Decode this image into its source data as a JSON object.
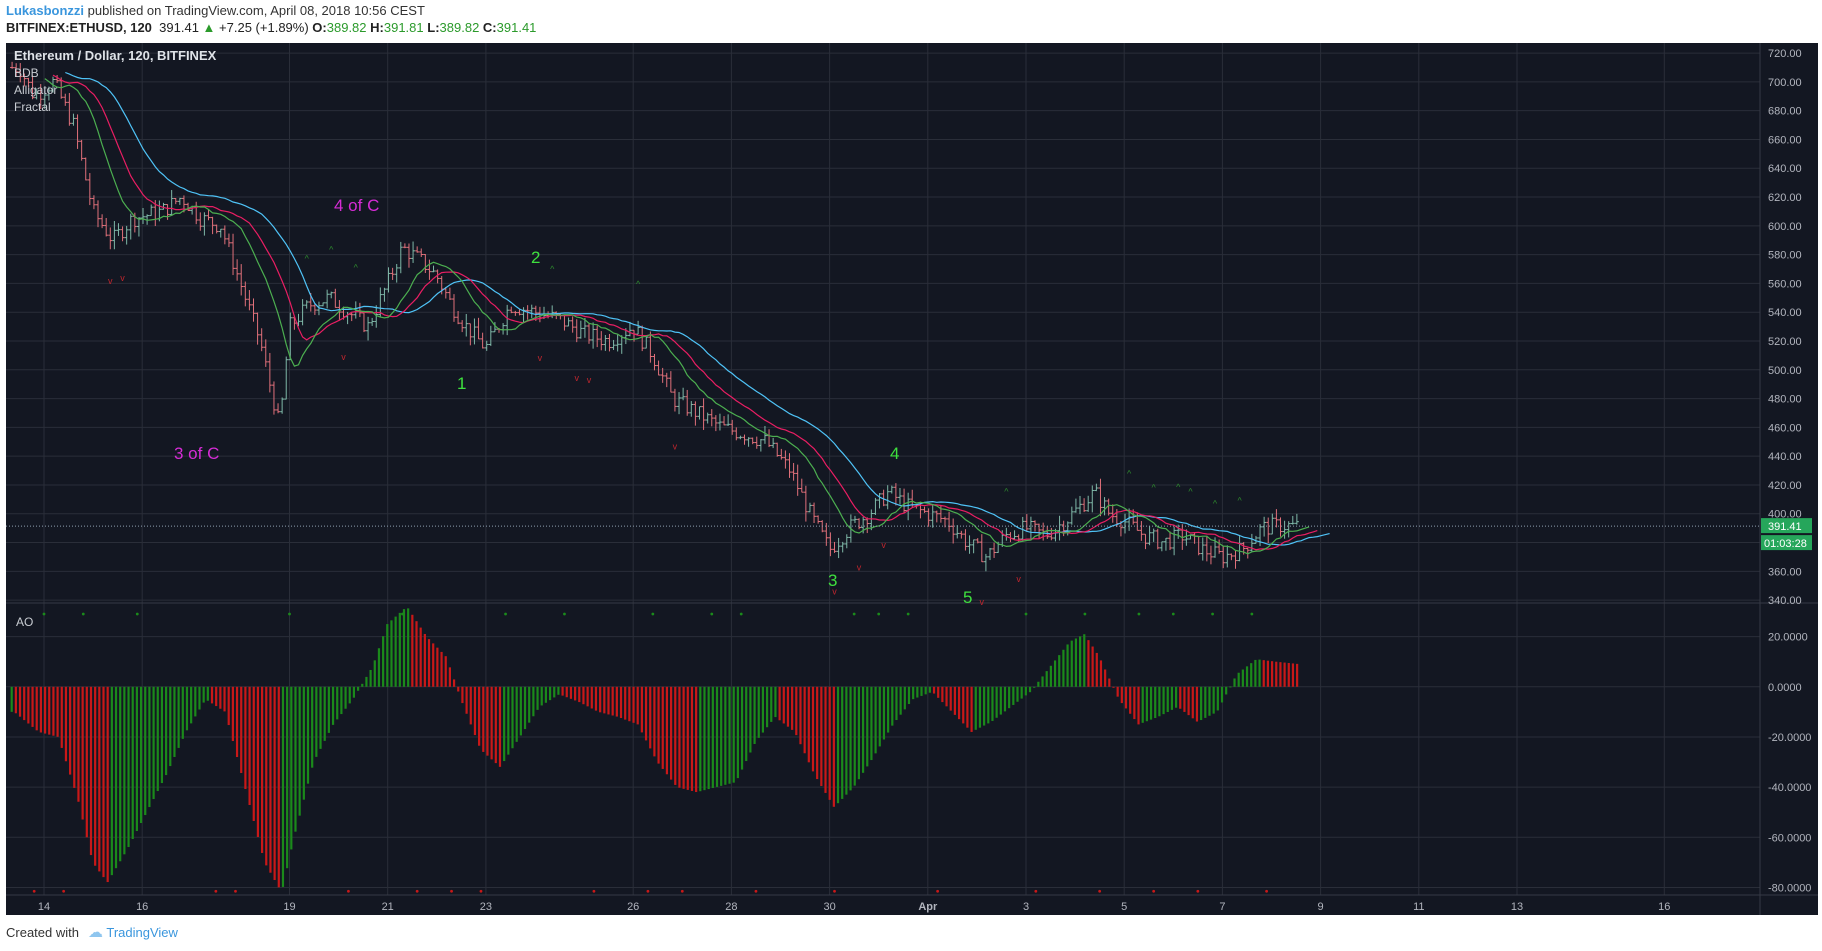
{
  "header": {
    "author": "Lukasbonzzi",
    "published_text": "published on TradingView.com, April 08, 2018 10:56 CEST",
    "symbol": "BITFINEX:ETHUSD, 120",
    "last": "391.41",
    "change": "+7.25 (+1.89%)",
    "open_label": "O:",
    "open": "389.82",
    "high_label": "H:",
    "high": "391.81",
    "low_label": "L:",
    "low": "389.82",
    "close_label": "C:",
    "close": "391.41"
  },
  "footer": {
    "created_text": "Created with",
    "brand": "TradingView"
  },
  "colors": {
    "background": "#131722",
    "grid": "#2a2e39",
    "up": "#26a69a",
    "down": "#ef5350",
    "jaw": "#4fc3f7",
    "teeth": "#e91e63",
    "lips": "#4caf50",
    "ao_up": "#1b8a1b",
    "ao_down": "#c91818",
    "annot_magenta": "#d62cd6",
    "annot_green": "#3ee03e"
  },
  "chart_data": {
    "type": "candlestick",
    "title": "Ethereum / Dollar, 120, BITFINEX",
    "indicators": [
      "BDB",
      "Alligator",
      "Fractal"
    ],
    "x_ticks": [
      "14",
      "16",
      "19",
      "21",
      "23",
      "26",
      "28",
      "30",
      "Apr",
      "3",
      "5",
      "7",
      "9",
      "11",
      "13",
      "16"
    ],
    "price_axis": {
      "ticks": [
        "720.00",
        "700.00",
        "680.00",
        "660.00",
        "640.00",
        "620.00",
        "600.00",
        "580.00",
        "560.00",
        "540.00",
        "520.00",
        "500.00",
        "480.00",
        "460.00",
        "440.00",
        "420.00",
        "400.00",
        "380.00",
        "360.00",
        "340.00"
      ],
      "ylim": [
        338,
        727
      ]
    },
    "current_price": "391.41",
    "countdown": "01:03:28",
    "price_path": [
      [
        13.5,
        710
      ],
      [
        13.8,
        690
      ],
      [
        14.2,
        700
      ],
      [
        14.6,
        670
      ],
      [
        15.0,
        610
      ],
      [
        15.4,
        590
      ],
      [
        15.8,
        605
      ],
      [
        16.4,
        610
      ],
      [
        16.8,
        620
      ],
      [
        17.2,
        605
      ],
      [
        17.6,
        600
      ],
      [
        18.0,
        560
      ],
      [
        18.4,
        520
      ],
      [
        18.8,
        460
      ],
      [
        19.0,
        530
      ],
      [
        19.4,
        545
      ],
      [
        19.8,
        550
      ],
      [
        20.2,
        540
      ],
      [
        20.6,
        530
      ],
      [
        21.0,
        560
      ],
      [
        21.3,
        585
      ],
      [
        21.7,
        575
      ],
      [
        22.0,
        565
      ],
      [
        22.3,
        545
      ],
      [
        22.6,
        530
      ],
      [
        23.0,
        515
      ],
      [
        23.5,
        545
      ],
      [
        24.0,
        540
      ],
      [
        24.5,
        535
      ],
      [
        25.0,
        525
      ],
      [
        25.5,
        520
      ],
      [
        26.0,
        530
      ],
      [
        26.4,
        510
      ],
      [
        26.8,
        480
      ],
      [
        27.3,
        470
      ],
      [
        27.8,
        460
      ],
      [
        28.3,
        455
      ],
      [
        28.7,
        450
      ],
      [
        29.2,
        430
      ],
      [
        29.6,
        400
      ],
      [
        30.0,
        375
      ],
      [
        30.4,
        390
      ],
      [
        30.8,
        400
      ],
      [
        31.2,
        415
      ],
      [
        31.6,
        405
      ],
      [
        32.0,
        400
      ],
      [
        32.4,
        395
      ],
      [
        32.8,
        380
      ],
      [
        33.2,
        370
      ],
      [
        33.6,
        385
      ],
      [
        34.0,
        390
      ],
      [
        34.4,
        385
      ],
      [
        34.8,
        395
      ],
      [
        35.1,
        405
      ],
      [
        35.4,
        415
      ],
      [
        35.7,
        400
      ],
      [
        36.0,
        395
      ],
      [
        36.4,
        385
      ],
      [
        36.8,
        380
      ],
      [
        37.2,
        385
      ],
      [
        37.6,
        375
      ],
      [
        38.0,
        370
      ],
      [
        38.4,
        375
      ],
      [
        38.8,
        390
      ],
      [
        39.2,
        392
      ],
      [
        39.6,
        391
      ]
    ],
    "wave_labels": [
      {
        "text": "4 of C",
        "color": "magenta"
      },
      {
        "text": "3 of C",
        "color": "magenta"
      },
      {
        "text": "2",
        "color": "green"
      },
      {
        "text": "1",
        "color": "green"
      },
      {
        "text": "4",
        "color": "green"
      },
      {
        "text": "3",
        "color": "green"
      },
      {
        "text": "5",
        "color": "green"
      }
    ],
    "ao": {
      "label": "AO",
      "ticks": [
        "20.0000",
        "0.0000",
        "-20.0000",
        "-40.0000",
        "-60.0000",
        "-80.0000"
      ],
      "ylim": [
        -83,
        33
      ],
      "path": [
        [
          13.4,
          -10
        ],
        [
          13.9,
          -18
        ],
        [
          14.3,
          -20
        ],
        [
          14.7,
          -45
        ],
        [
          15.0,
          -70
        ],
        [
          15.3,
          -78
        ],
        [
          15.7,
          -65
        ],
        [
          16.1,
          -50
        ],
        [
          16.5,
          -35
        ],
        [
          16.9,
          -18
        ],
        [
          17.3,
          -5
        ],
        [
          17.7,
          -10
        ],
        [
          18.1,
          -40
        ],
        [
          18.5,
          -70
        ],
        [
          18.85,
          -82
        ],
        [
          19.1,
          -60
        ],
        [
          19.5,
          -30
        ],
        [
          19.9,
          -15
        ],
        [
          20.3,
          -5
        ],
        [
          20.7,
          8
        ],
        [
          21.0,
          25
        ],
        [
          21.4,
          32
        ],
        [
          21.8,
          20
        ],
        [
          22.2,
          12
        ],
        [
          22.5,
          -5
        ],
        [
          22.9,
          -25
        ],
        [
          23.3,
          -32
        ],
        [
          23.7,
          -20
        ],
        [
          24.1,
          -8
        ],
        [
          24.5,
          -3
        ],
        [
          24.9,
          -6
        ],
        [
          25.3,
          -10
        ],
        [
          25.7,
          -12
        ],
        [
          26.1,
          -15
        ],
        [
          26.5,
          -30
        ],
        [
          26.9,
          -40
        ],
        [
          27.3,
          -42
        ],
        [
          27.7,
          -40
        ],
        [
          28.1,
          -38
        ],
        [
          28.5,
          -22
        ],
        [
          28.9,
          -12
        ],
        [
          29.3,
          -18
        ],
        [
          29.7,
          -35
        ],
        [
          30.1,
          -48
        ],
        [
          30.5,
          -40
        ],
        [
          30.9,
          -28
        ],
        [
          31.3,
          -15
        ],
        [
          31.7,
          -5
        ],
        [
          32.1,
          -2
        ],
        [
          32.5,
          -10
        ],
        [
          32.9,
          -18
        ],
        [
          33.3,
          -14
        ],
        [
          33.7,
          -8
        ],
        [
          34.1,
          -2
        ],
        [
          34.5,
          8
        ],
        [
          34.9,
          18
        ],
        [
          35.2,
          21
        ],
        [
          35.5,
          12
        ],
        [
          35.9,
          -5
        ],
        [
          36.3,
          -15
        ],
        [
          36.7,
          -12
        ],
        [
          37.1,
          -8
        ],
        [
          37.5,
          -14
        ],
        [
          37.9,
          -10
        ],
        [
          38.3,
          5
        ],
        [
          38.7,
          11
        ],
        [
          39.1,
          10
        ],
        [
          39.6,
          9
        ]
      ]
    }
  }
}
